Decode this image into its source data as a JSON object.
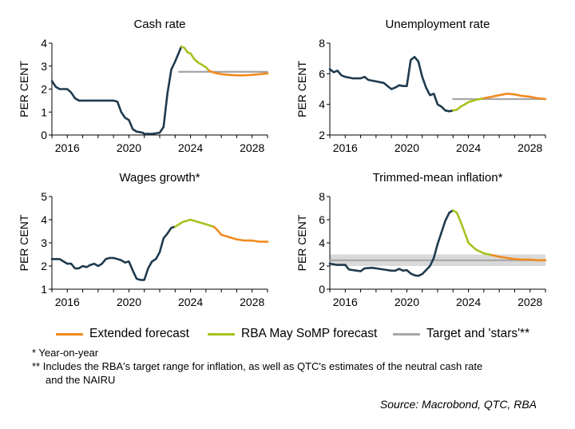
{
  "colors": {
    "actual": "#1f3a4d",
    "extended": "#f28a1e",
    "rba": "#a4c31e",
    "target": "#a6a6a6",
    "band": "#d9d9d9"
  },
  "chart_data": [
    {
      "type": "line",
      "title": "Cash rate",
      "ylabel": "PER CENT",
      "xlim": [
        2015,
        2029
      ],
      "ylim": [
        0,
        4
      ],
      "yticks": [
        0,
        1,
        2,
        3,
        4
      ],
      "xticks": [
        2016,
        2020,
        2024,
        2028
      ],
      "series": [
        {
          "role": "actual",
          "points": [
            [
              2015.0,
              2.35
            ],
            [
              2015.25,
              2.1
            ],
            [
              2015.5,
              2.0
            ],
            [
              2016.0,
              2.0
            ],
            [
              2016.25,
              1.85
            ],
            [
              2016.5,
              1.6
            ],
            [
              2016.75,
              1.5
            ],
            [
              2017,
              1.5
            ],
            [
              2018,
              1.5
            ],
            [
              2019,
              1.5
            ],
            [
              2019.25,
              1.45
            ],
            [
              2019.5,
              1.0
            ],
            [
              2019.75,
              0.75
            ],
            [
              2020,
              0.65
            ],
            [
              2020.25,
              0.25
            ],
            [
              2020.5,
              0.15
            ],
            [
              2020.9,
              0.1
            ],
            [
              2021.0,
              0.05
            ],
            [
              2021.5,
              0.05
            ],
            [
              2022.0,
              0.1
            ],
            [
              2022.25,
              0.35
            ],
            [
              2022.5,
              1.8
            ],
            [
              2022.75,
              2.85
            ],
            [
              2023.0,
              3.2
            ],
            [
              2023.25,
              3.6
            ],
            [
              2023.4,
              3.85
            ]
          ]
        },
        {
          "role": "rba",
          "points": [
            [
              2023.4,
              3.85
            ],
            [
              2023.6,
              3.8
            ],
            [
              2023.8,
              3.6
            ],
            [
              2024.0,
              3.55
            ],
            [
              2024.25,
              3.3
            ],
            [
              2024.5,
              3.15
            ],
            [
              2024.75,
              3.05
            ],
            [
              2025.0,
              2.95
            ],
            [
              2025.2,
              2.8
            ]
          ]
        },
        {
          "role": "extended",
          "points": [
            [
              2025.2,
              2.8
            ],
            [
              2025.5,
              2.72
            ],
            [
              2026.0,
              2.65
            ],
            [
              2026.5,
              2.62
            ],
            [
              2027.0,
              2.6
            ],
            [
              2027.5,
              2.6
            ],
            [
              2028.0,
              2.62
            ],
            [
              2028.5,
              2.65
            ],
            [
              2029.0,
              2.68
            ]
          ]
        },
        {
          "role": "target",
          "points": [
            [
              2023.25,
              2.75
            ],
            [
              2029.0,
              2.75
            ]
          ]
        }
      ]
    },
    {
      "type": "line",
      "title": "Unemployment rate",
      "ylabel": "PER CENT",
      "xlim": [
        2015,
        2029
      ],
      "ylim": [
        2,
        8
      ],
      "yticks": [
        2,
        4,
        6,
        8
      ],
      "xticks": [
        2016,
        2020,
        2024,
        2028
      ],
      "series": [
        {
          "role": "actual",
          "points": [
            [
              2015.0,
              6.3
            ],
            [
              2015.25,
              6.1
            ],
            [
              2015.5,
              6.2
            ],
            [
              2015.75,
              5.9
            ],
            [
              2016.0,
              5.8
            ],
            [
              2016.5,
              5.7
            ],
            [
              2017.0,
              5.7
            ],
            [
              2017.25,
              5.8
            ],
            [
              2017.5,
              5.6
            ],
            [
              2018.0,
              5.5
            ],
            [
              2018.5,
              5.4
            ],
            [
              2018.75,
              5.2
            ],
            [
              2019.0,
              5.0
            ],
            [
              2019.25,
              5.1
            ],
            [
              2019.5,
              5.25
            ],
            [
              2019.75,
              5.2
            ],
            [
              2020.0,
              5.2
            ],
            [
              2020.25,
              6.9
            ],
            [
              2020.5,
              7.1
            ],
            [
              2020.75,
              6.8
            ],
            [
              2021.0,
              5.8
            ],
            [
              2021.25,
              5.1
            ],
            [
              2021.5,
              4.6
            ],
            [
              2021.75,
              4.7
            ],
            [
              2022.0,
              4.0
            ],
            [
              2022.25,
              3.85
            ],
            [
              2022.5,
              3.6
            ],
            [
              2022.75,
              3.55
            ],
            [
              2023.0,
              3.6
            ]
          ]
        },
        {
          "role": "rba",
          "points": [
            [
              2023.0,
              3.6
            ],
            [
              2023.25,
              3.65
            ],
            [
              2023.5,
              3.85
            ],
            [
              2023.75,
              4.0
            ],
            [
              2024.0,
              4.15
            ],
            [
              2024.5,
              4.3
            ],
            [
              2025.0,
              4.4
            ]
          ]
        },
        {
          "role": "extended",
          "points": [
            [
              2025.0,
              4.4
            ],
            [
              2025.5,
              4.5
            ],
            [
              2026.0,
              4.6
            ],
            [
              2026.5,
              4.7
            ],
            [
              2027.0,
              4.65
            ],
            [
              2027.5,
              4.55
            ],
            [
              2028.0,
              4.5
            ],
            [
              2028.5,
              4.4
            ],
            [
              2029.0,
              4.35
            ]
          ]
        },
        {
          "role": "target",
          "points": [
            [
              2023.0,
              4.35
            ],
            [
              2029.0,
              4.35
            ]
          ]
        }
      ]
    },
    {
      "type": "line",
      "title": "Wages growth*",
      "ylabel": "PER CENT",
      "xlim": [
        2015,
        2029
      ],
      "ylim": [
        1,
        5
      ],
      "yticks": [
        1,
        2,
        3,
        4,
        5
      ],
      "xticks": [
        2016,
        2020,
        2024,
        2028
      ],
      "series": [
        {
          "role": "actual",
          "points": [
            [
              2015.0,
              2.3
            ],
            [
              2015.5,
              2.3
            ],
            [
              2016.0,
              2.1
            ],
            [
              2016.25,
              2.1
            ],
            [
              2016.5,
              1.9
            ],
            [
              2016.75,
              1.9
            ],
            [
              2017.0,
              2.0
            ],
            [
              2017.25,
              1.95
            ],
            [
              2017.5,
              2.05
            ],
            [
              2017.75,
              2.1
            ],
            [
              2018.0,
              2.0
            ],
            [
              2018.25,
              2.1
            ],
            [
              2018.5,
              2.3
            ],
            [
              2018.75,
              2.35
            ],
            [
              2019.0,
              2.35
            ],
            [
              2019.25,
              2.3
            ],
            [
              2019.5,
              2.25
            ],
            [
              2019.75,
              2.15
            ],
            [
              2020.0,
              2.2
            ],
            [
              2020.25,
              1.8
            ],
            [
              2020.5,
              1.45
            ],
            [
              2020.75,
              1.4
            ],
            [
              2021.0,
              1.4
            ],
            [
              2021.25,
              1.9
            ],
            [
              2021.5,
              2.2
            ],
            [
              2021.75,
              2.3
            ],
            [
              2022.0,
              2.6
            ],
            [
              2022.25,
              3.2
            ],
            [
              2022.5,
              3.4
            ],
            [
              2022.75,
              3.65
            ],
            [
              2023.0,
              3.7
            ]
          ]
        },
        {
          "role": "rba",
          "points": [
            [
              2023.0,
              3.7
            ],
            [
              2023.5,
              3.9
            ],
            [
              2024.0,
              4.0
            ],
            [
              2024.5,
              3.9
            ],
            [
              2025.0,
              3.8
            ],
            [
              2025.5,
              3.7
            ]
          ]
        },
        {
          "role": "extended",
          "points": [
            [
              2025.5,
              3.7
            ],
            [
              2025.75,
              3.55
            ],
            [
              2026.0,
              3.35
            ],
            [
              2026.5,
              3.25
            ],
            [
              2027.0,
              3.15
            ],
            [
              2027.5,
              3.1
            ],
            [
              2028.0,
              3.1
            ],
            [
              2028.5,
              3.05
            ],
            [
              2029.0,
              3.05
            ]
          ]
        }
      ]
    },
    {
      "type": "line",
      "title": "Trimmed-mean inflation*",
      "ylabel": "PER CENT",
      "xlim": [
        2015,
        2029
      ],
      "ylim": [
        0,
        8
      ],
      "yticks": [
        0,
        2,
        4,
        6,
        8
      ],
      "xticks": [
        2016,
        2020,
        2024,
        2028
      ],
      "band": [
        2,
        3
      ],
      "series": [
        {
          "role": "actual",
          "points": [
            [
              2015.0,
              2.2
            ],
            [
              2015.5,
              2.1
            ],
            [
              2016.0,
              2.1
            ],
            [
              2016.25,
              1.7
            ],
            [
              2016.75,
              1.6
            ],
            [
              2017.0,
              1.55
            ],
            [
              2017.25,
              1.8
            ],
            [
              2017.75,
              1.85
            ],
            [
              2018.0,
              1.8
            ],
            [
              2018.5,
              1.7
            ],
            [
              2019.0,
              1.6
            ],
            [
              2019.25,
              1.6
            ],
            [
              2019.5,
              1.75
            ],
            [
              2019.75,
              1.6
            ],
            [
              2020.0,
              1.65
            ],
            [
              2020.25,
              1.35
            ],
            [
              2020.5,
              1.2
            ],
            [
              2020.75,
              1.15
            ],
            [
              2021.0,
              1.3
            ],
            [
              2021.5,
              2.0
            ],
            [
              2021.75,
              2.7
            ],
            [
              2022.0,
              3.9
            ],
            [
              2022.25,
              4.9
            ],
            [
              2022.5,
              5.9
            ],
            [
              2022.75,
              6.6
            ],
            [
              2023.0,
              6.8
            ]
          ]
        },
        {
          "role": "rba",
          "points": [
            [
              2023.0,
              6.8
            ],
            [
              2023.25,
              6.6
            ],
            [
              2023.5,
              5.8
            ],
            [
              2023.75,
              4.9
            ],
            [
              2024.0,
              4.0
            ],
            [
              2024.5,
              3.4
            ],
            [
              2025.0,
              3.1
            ],
            [
              2025.5,
              2.95
            ]
          ]
        },
        {
          "role": "extended",
          "points": [
            [
              2025.5,
              2.95
            ],
            [
              2026.0,
              2.8
            ],
            [
              2026.5,
              2.7
            ],
            [
              2027.0,
              2.6
            ],
            [
              2027.5,
              2.55
            ],
            [
              2028.0,
              2.55
            ],
            [
              2028.5,
              2.5
            ],
            [
              2029.0,
              2.5
            ]
          ]
        },
        {
          "role": "target",
          "points": [
            [
              2015.0,
              2.5
            ],
            [
              2029.0,
              2.5
            ]
          ]
        }
      ]
    }
  ],
  "legend": {
    "extended": "Extended forecast",
    "rba": "RBA May SoMP forecast",
    "target": "Target and 'stars'**"
  },
  "notes": {
    "note1": "*  Year-on-year",
    "note2a": "** Includes the RBA's target range for inflation, as well as QTC's estimates of the neutral cash rate",
    "note2b": "and the NAIRU"
  },
  "source": "Source: Macrobond, QTC, RBA"
}
